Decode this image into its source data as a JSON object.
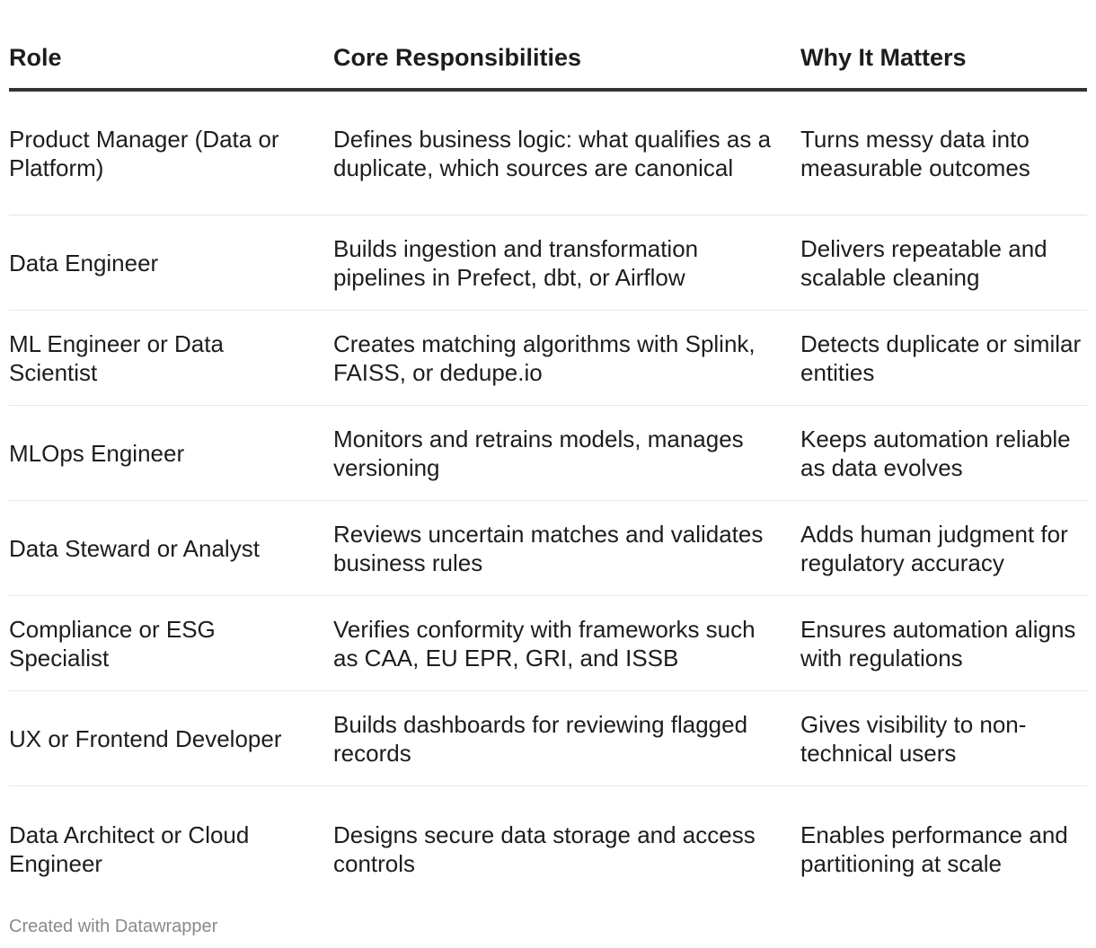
{
  "chart_data": {
    "type": "table",
    "columns": [
      "Role",
      "Core Responsibilities",
      "Why It Matters"
    ],
    "rows": [
      {
        "role": "Product Manager (Data or Platform)",
        "responsibilities": "Defines business logic: what qualifies as a duplicate, which sources are canonical",
        "why": "Turns messy data into measurable outcomes"
      },
      {
        "role": "Data Engineer",
        "responsibilities": "Builds ingestion and transformation pipelines in Prefect, dbt, or Airflow",
        "why": "Delivers repeatable and scalable cleaning"
      },
      {
        "role": "ML Engineer or Data Scientist",
        "responsibilities": "Creates matching algorithms with Splink, FAISS, or dedupe.io",
        "why": "Detects duplicate or similar entities"
      },
      {
        "role": "MLOps Engineer",
        "responsibilities": "Monitors and retrains models, manages versioning",
        "why": "Keeps automation reliable as data evolves"
      },
      {
        "role": "Data Steward or Analyst",
        "responsibilities": "Reviews uncertain matches and validates business rules",
        "why": "Adds human judgment for regulatory accuracy"
      },
      {
        "role": "Compliance or ESG Specialist",
        "responsibilities": "Verifies conformity with frameworks such as CAA, EU EPR, GRI, and ISSB",
        "why": "Ensures automation aligns with regulations"
      },
      {
        "role": "UX or Frontend Developer",
        "responsibilities": "Builds dashboards for reviewing flagged records",
        "why": "Gives visibility to non-technical users"
      },
      {
        "role": "Data Architect or Cloud Engineer",
        "responsibilities": "Designs secure data storage and access controls",
        "why": "Enables performance and partitioning at scale"
      }
    ]
  },
  "footer": {
    "credit": "Created with Datawrapper"
  },
  "colors": {
    "text": "#1d1d1d",
    "header_rule": "#333333",
    "row_rule": "#e6e6e6",
    "footer_text": "#8a8a8a"
  }
}
